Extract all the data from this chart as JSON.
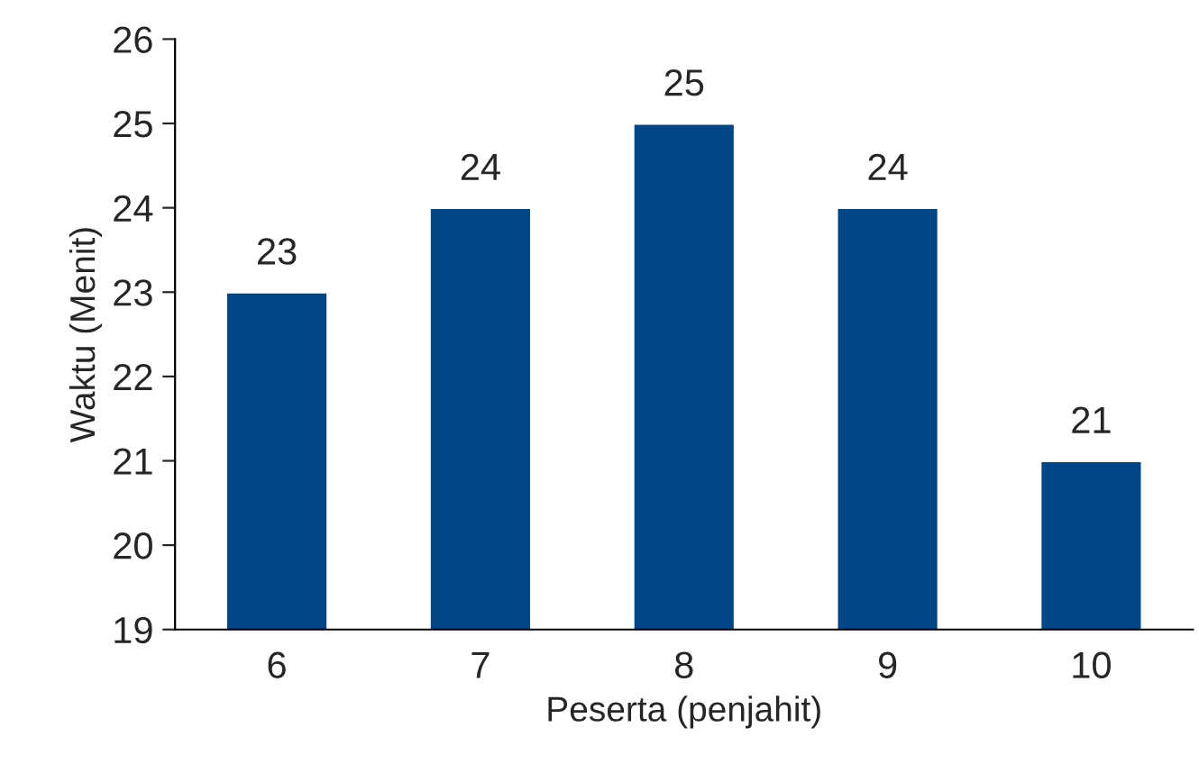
{
  "chart_data": {
    "type": "bar",
    "xlabel": "Peserta (penjahit)",
    "ylabel": "Waktu (Menit)",
    "categories": [
      "6",
      "7",
      "8",
      "9",
      "10"
    ],
    "values": [
      23,
      24,
      25,
      24,
      21
    ],
    "color": "#004586",
    "ylim": [
      19,
      26
    ],
    "yticks": [
      19,
      20,
      21,
      22,
      23,
      24,
      25,
      26
    ],
    "data_labels": true,
    "grid": false,
    "legend": false
  }
}
